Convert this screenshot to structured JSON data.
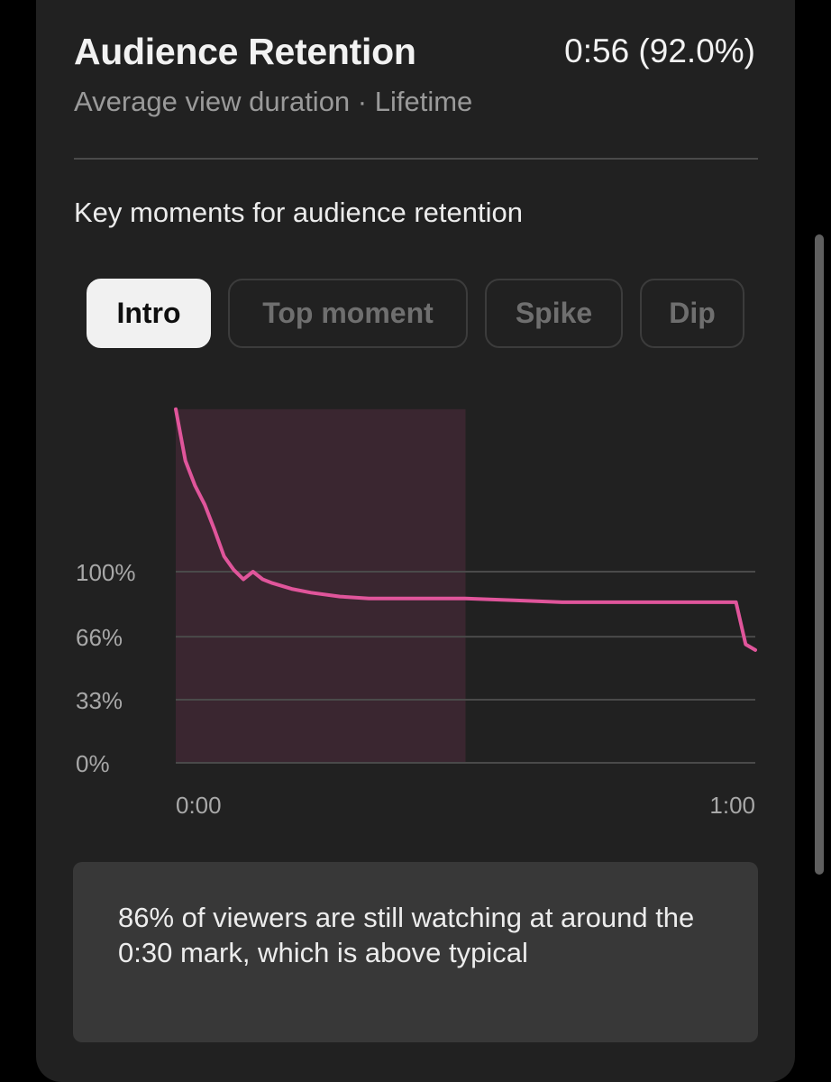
{
  "header": {
    "title": "Audience Retention",
    "value": "0:56 (92.0%)",
    "subtitle": "Average view duration · Lifetime"
  },
  "section": {
    "heading": "Key moments for audience retention"
  },
  "chips": [
    {
      "label": "Intro",
      "active": true
    },
    {
      "label": "Top moment",
      "active": false
    },
    {
      "label": "Spike",
      "active": false
    },
    {
      "label": "Dip",
      "active": false
    }
  ],
  "colors": {
    "line": "#e0559b",
    "highlight": "#3a2630",
    "card": "#212121",
    "insight_bg": "#383838"
  },
  "chart_data": {
    "type": "line",
    "ytick_labels": [
      "0%",
      "33%",
      "66%",
      "100%"
    ],
    "ytick_values": [
      0,
      33,
      66,
      100
    ],
    "xtick_labels": [
      "0:00",
      "1:00"
    ],
    "xlim": [
      0,
      60
    ],
    "ylim": [
      0,
      185
    ],
    "highlight_range": [
      0,
      30
    ],
    "series": [
      {
        "x": [
          0,
          1,
          2,
          3,
          4,
          5,
          6,
          7,
          8,
          9,
          10,
          12,
          14,
          17,
          20,
          24,
          30,
          35,
          40,
          45,
          49,
          54,
          58,
          59,
          60
        ],
        "y": [
          185,
          158,
          145,
          135,
          122,
          108,
          101,
          96,
          100,
          96,
          94,
          91,
          89,
          87,
          86,
          86,
          86,
          85,
          84,
          84,
          84,
          84,
          84,
          62,
          59
        ]
      }
    ]
  },
  "insight": {
    "text": "86% of viewers are still watching at around the 0:30 mark, which is above typical"
  }
}
